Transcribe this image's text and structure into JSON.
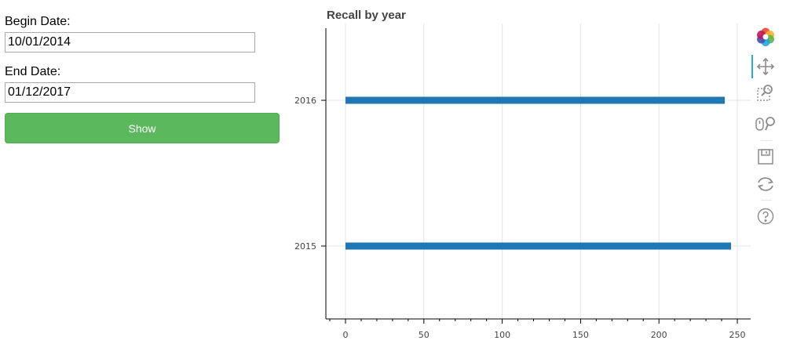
{
  "form": {
    "begin_label": "Begin Date:",
    "begin_value": "10/01/2014",
    "end_label": "End Date:",
    "end_value": "01/12/2017",
    "show_label": "Show",
    "show_color": "#5cb85c"
  },
  "chart_data": {
    "type": "bar",
    "orientation": "horizontal",
    "title": "Recall by year",
    "categories": [
      "2015",
      "2016"
    ],
    "values": [
      246,
      242
    ],
    "start": 0,
    "xlim": [
      -6,
      258
    ],
    "x_ticks": [
      0,
      50,
      100,
      150,
      200,
      250
    ],
    "grid": true,
    "bar_color": "#1f77b4"
  },
  "toolbar": {
    "tools": [
      "bokeh-logo-icon",
      "pan-icon",
      "box-zoom-icon",
      "wheel-zoom-icon",
      "save-icon",
      "reset-icon",
      "help-icon"
    ],
    "active_tool": "pan-icon",
    "active_color": "#26aae1"
  }
}
